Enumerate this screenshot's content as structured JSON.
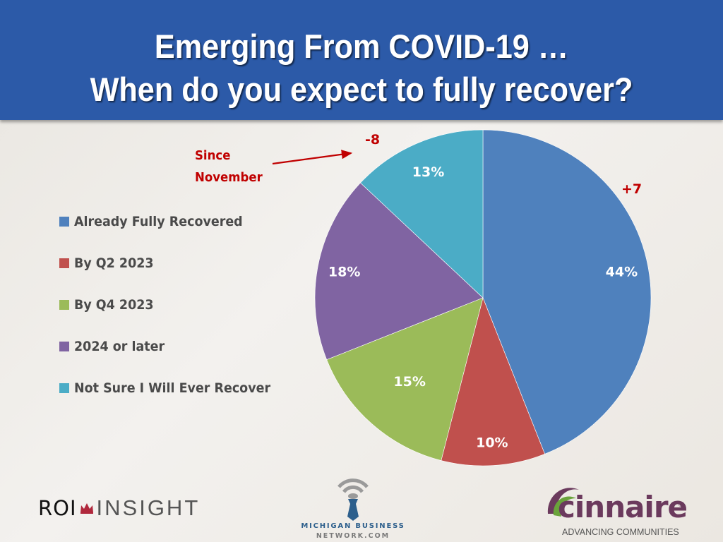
{
  "header": {
    "title_line1": "Emerging From COVID-19 …",
    "title_line2": "When do you expect to fully recover?"
  },
  "annotations": {
    "since_line1": "Since",
    "since_line2": "November",
    "delta_not_sure": "-8",
    "delta_recovered": "+7",
    "color": "#c00000"
  },
  "chart_data": {
    "type": "pie",
    "title": "When do you expect to fully recover?",
    "start": "12 o'clock, clockwise",
    "legend_position": "left",
    "slices": [
      {
        "label": "Already Fully Recovered",
        "value": 44,
        "display": "44%",
        "color": "#4f81bd"
      },
      {
        "label": "By Q2 2023",
        "value": 10,
        "display": "10%",
        "color": "#c0504d"
      },
      {
        "label": "By Q4 2023",
        "value": 15,
        "display": "15%",
        "color": "#9bbb59"
      },
      {
        "label": "2024 or later",
        "value": 18,
        "display": "18%",
        "color": "#8064a2"
      },
      {
        "label": "Not Sure I Will Ever Recover",
        "value": 13,
        "display": "13%",
        "color": "#4bacc6"
      }
    ],
    "change_since_november": {
      "Already Fully Recovered": "+7",
      "Not Sure I Will Ever Recover": "-8"
    }
  },
  "logos": {
    "roi_left": "ROI",
    "roi_right": "INSIGHT",
    "mbn_line1": "MICHIGAN BUSINESS",
    "mbn_line2": "NETWORK.COM",
    "cinnaire_name": "cinnaire",
    "cinnaire_reg": "®",
    "cinnaire_tagline": "ADVANCING COMMUNITIES"
  }
}
